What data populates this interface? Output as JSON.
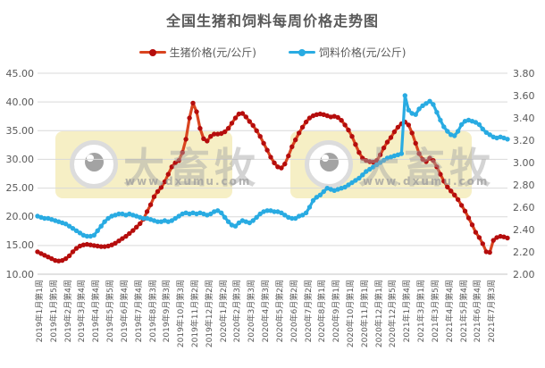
{
  "title": "全国生猪和饲料每周价格走势图",
  "watermark": {
    "brand": "大畜牧",
    "url": "www.dxumu.com",
    "box_color": "#f6efc5"
  },
  "chart_data": {
    "type": "line",
    "title": "全国生猪和饲料每周价格走势图",
    "grid": "horizontal",
    "grid_color": "#d9d9d9",
    "legend_position": "top",
    "left_axis": {
      "min": 10,
      "max": 45,
      "step": 5,
      "ticks": [
        "45.00",
        "40.00",
        "35.00",
        "30.00",
        "25.00",
        "20.00",
        "15.00",
        "10.00"
      ]
    },
    "right_axis": {
      "min": 2.0,
      "max": 3.8,
      "step": 0.2,
      "ticks": [
        "3.80",
        "3.60",
        "3.40",
        "3.20",
        "3.00",
        "2.80",
        "2.60",
        "2.40",
        "2.20",
        "2.00"
      ]
    },
    "x_label_every": 4,
    "x_labels": [
      "2019年1月第1周",
      "2019年1月第5周",
      "2019年2月第4周",
      "2019年3月第4周",
      "2019年4月第4周",
      "2019年5月第5周",
      "2019年6月第4周",
      "2019年7月第4周",
      "2019年8月第3周",
      "2019年9月第3周",
      "2019年10月第3周",
      "2019年11月第2周",
      "2019年12月第2周",
      "2020年1月第2周",
      "2020年2月第3周",
      "2020年3月第3周",
      "2020年4月第3周",
      "2020年5月第2周",
      "2020年6月第2周",
      "2020年7月第2周",
      "2020年8月第1周",
      "2020年9月第1周",
      "2020年10月第1周",
      "2020年11月第1周",
      "2020年12月第1周",
      "2020年12月第5周",
      "2021年1月第4周",
      "2021年3月第1周",
      "2021年3月第5周",
      "2021年4月第4周",
      "2021年5月第4周",
      "2021年6月第4周",
      "2021年7月第3周"
    ],
    "series": [
      {
        "name": "生猪价格(元/公斤)",
        "axis": "left",
        "color": "#B50D0D",
        "line_color": "#D9441F",
        "values": [
          13.9,
          13.6,
          13.3,
          13.0,
          12.7,
          12.4,
          12.3,
          12.4,
          12.7,
          13.2,
          13.9,
          14.5,
          14.9,
          15.1,
          15.2,
          15.1,
          15.0,
          14.9,
          14.8,
          14.8,
          14.9,
          15.1,
          15.4,
          15.8,
          16.2,
          16.6,
          17.1,
          17.6,
          18.2,
          18.8,
          19.6,
          20.9,
          22.1,
          23.5,
          24.4,
          25.1,
          26.1,
          27.4,
          28.7,
          29.4,
          29.8,
          31.2,
          33.5,
          37.2,
          39.8,
          38.3,
          35.4,
          33.6,
          33.2,
          34.0,
          34.4,
          34.4,
          34.5,
          34.8,
          35.4,
          36.3,
          37.2,
          37.9,
          38.0,
          37.4,
          36.6,
          35.9,
          35.0,
          34.0,
          32.8,
          31.6,
          30.4,
          29.4,
          28.7,
          28.5,
          29.2,
          30.6,
          32.2,
          33.4,
          34.6,
          35.6,
          36.5,
          37.2,
          37.6,
          37.8,
          37.9,
          37.8,
          37.6,
          37.4,
          37.5,
          37.3,
          36.8,
          36.0,
          35.1,
          34.0,
          32.6,
          31.2,
          30.2,
          29.8,
          29.6,
          29.5,
          29.8,
          30.8,
          32.0,
          33.0,
          33.8,
          34.8,
          35.6,
          36.2,
          36.5,
          36.0,
          34.6,
          32.8,
          31.0,
          30.0,
          29.6,
          30.2,
          29.8,
          28.7,
          27.4,
          26.2,
          25.2,
          24.5,
          23.8,
          23.0,
          22.0,
          21.0,
          19.8,
          18.6,
          17.3,
          16.4,
          15.3,
          13.9,
          13.8,
          15.9,
          16.4,
          16.6,
          16.5,
          16.3
        ]
      },
      {
        "name": "饲料价格(元/公斤)",
        "axis": "right",
        "color": "#29ABE2",
        "line_color": "#29ABE2",
        "values": [
          2.52,
          2.51,
          2.5,
          2.5,
          2.49,
          2.48,
          2.47,
          2.46,
          2.45,
          2.43,
          2.41,
          2.39,
          2.37,
          2.35,
          2.34,
          2.34,
          2.35,
          2.39,
          2.43,
          2.47,
          2.5,
          2.52,
          2.53,
          2.54,
          2.54,
          2.53,
          2.54,
          2.53,
          2.52,
          2.51,
          2.5,
          2.5,
          2.49,
          2.48,
          2.47,
          2.47,
          2.48,
          2.47,
          2.48,
          2.5,
          2.52,
          2.54,
          2.55,
          2.54,
          2.55,
          2.54,
          2.55,
          2.54,
          2.53,
          2.54,
          2.56,
          2.57,
          2.55,
          2.51,
          2.47,
          2.44,
          2.43,
          2.46,
          2.48,
          2.47,
          2.46,
          2.48,
          2.51,
          2.54,
          2.56,
          2.57,
          2.57,
          2.56,
          2.56,
          2.55,
          2.53,
          2.51,
          2.5,
          2.5,
          2.52,
          2.53,
          2.55,
          2.6,
          2.66,
          2.69,
          2.71,
          2.74,
          2.77,
          2.76,
          2.75,
          2.76,
          2.77,
          2.78,
          2.8,
          2.82,
          2.84,
          2.86,
          2.89,
          2.92,
          2.94,
          2.96,
          2.98,
          3.0,
          3.02,
          3.04,
          3.05,
          3.06,
          3.07,
          3.08,
          3.6,
          3.47,
          3.44,
          3.43,
          3.48,
          3.51,
          3.53,
          3.55,
          3.52,
          3.45,
          3.38,
          3.32,
          3.28,
          3.25,
          3.24,
          3.28,
          3.34,
          3.37,
          3.38,
          3.37,
          3.36,
          3.34,
          3.3,
          3.27,
          3.25,
          3.23,
          3.22,
          3.23,
          3.22,
          3.21
        ]
      }
    ]
  }
}
